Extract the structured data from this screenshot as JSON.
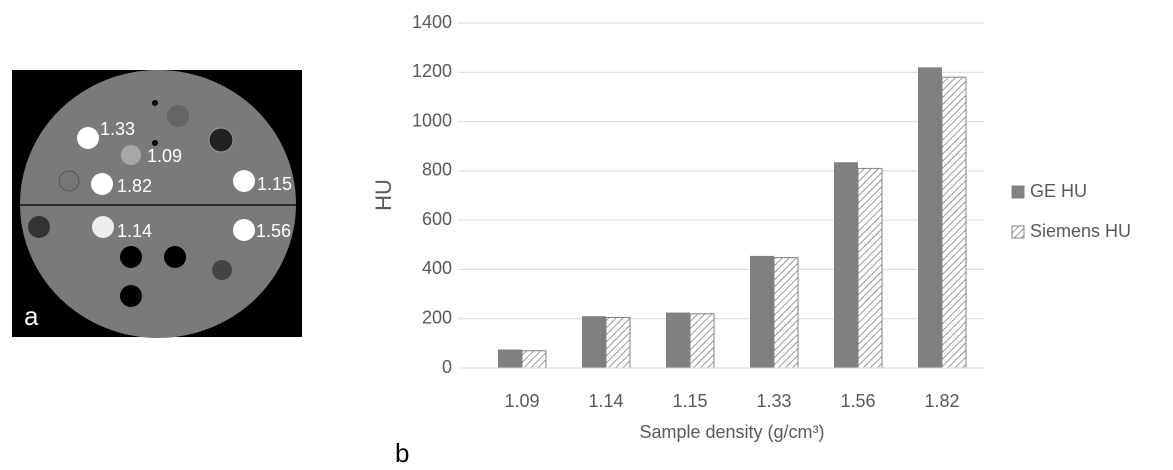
{
  "image_panel": {
    "panel_label": "a",
    "labels": [
      "1.33",
      "1.09",
      "1.82",
      "1.15",
      "1.14",
      "1.56"
    ]
  },
  "chart_data": {
    "type": "bar",
    "panel_label": "b",
    "x_label": "Sample density (g/cm³)",
    "y_label": "HU",
    "categories": [
      "1.09",
      "1.14",
      "1.15",
      "1.33",
      "1.56",
      "1.82"
    ],
    "series": [
      {
        "name": "GE HU",
        "color": "#808080",
        "values": [
          75,
          210,
          225,
          455,
          835,
          1220
        ]
      },
      {
        "name": "Siemens HU",
        "color": "#808080",
        "pattern": "hatch",
        "values": [
          70,
          205,
          220,
          448,
          810,
          1180
        ]
      }
    ],
    "ylim": [
      0,
      1400
    ],
    "yticks": [
      0,
      200,
      400,
      600,
      800,
      1000,
      1200,
      1400
    ],
    "grid": true,
    "legend": "right"
  }
}
